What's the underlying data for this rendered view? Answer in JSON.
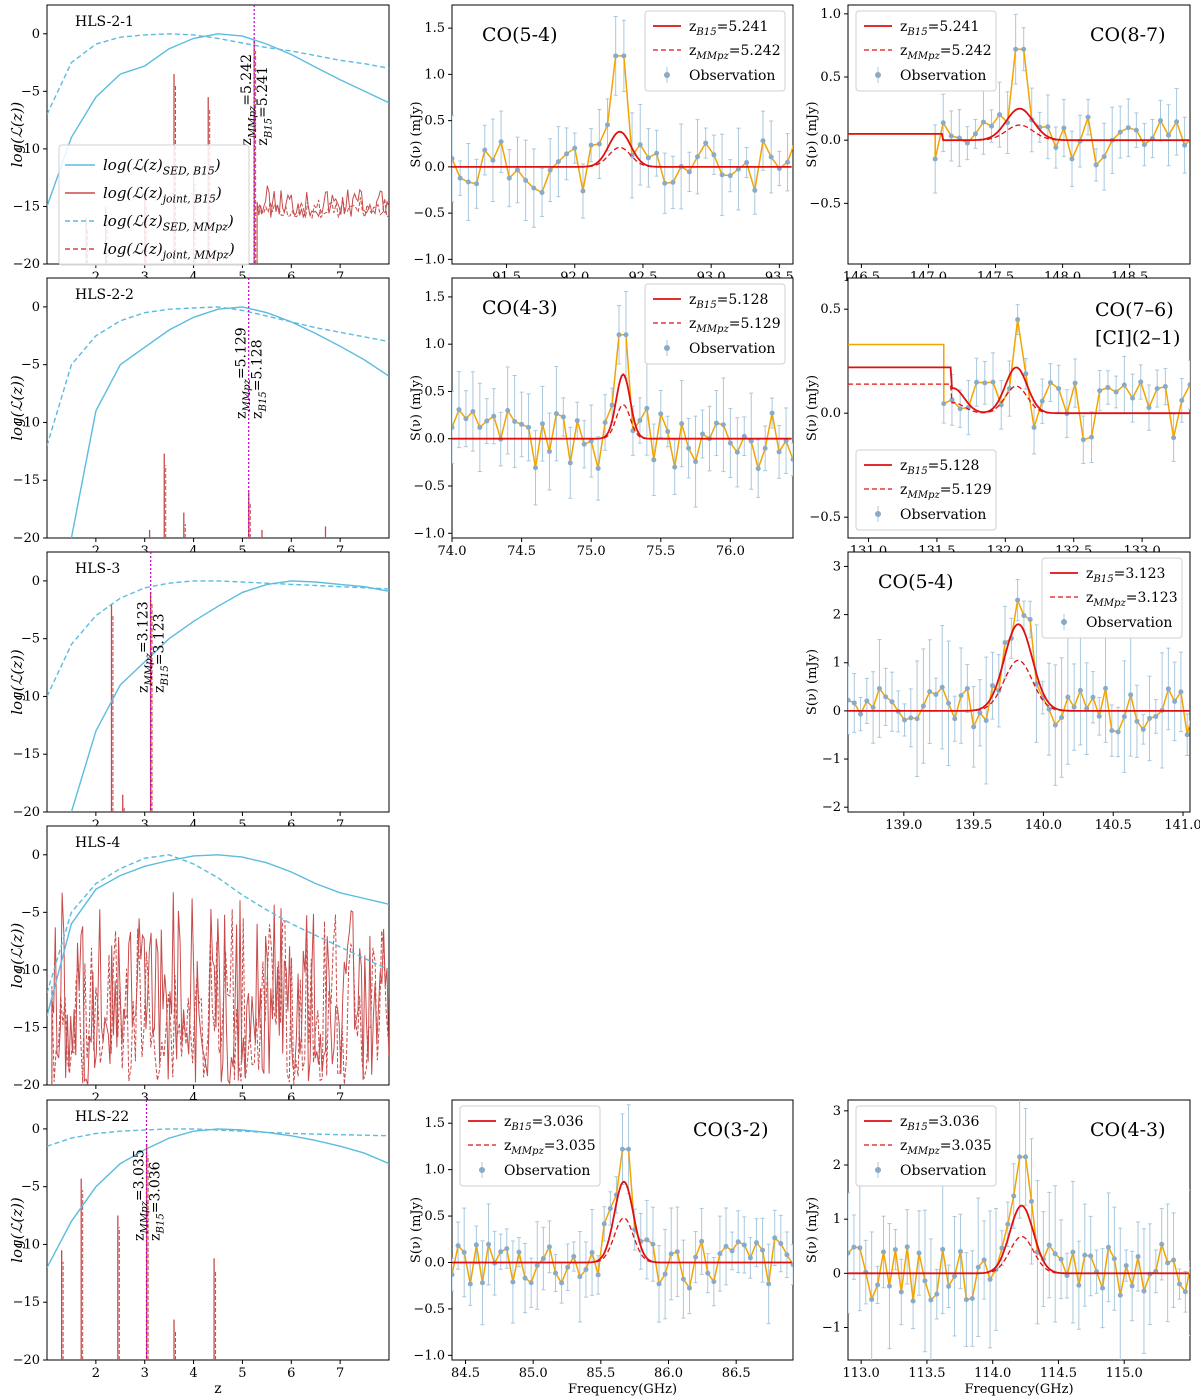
{
  "colors": {
    "sed": "#5bbcdf",
    "joint": "#c84b4b",
    "zline": "#c000c0",
    "fit": "#e01010",
    "obs_line": "#f2a400",
    "obs_point": "#8aabc6",
    "obs_err": "#a9c8de"
  },
  "axis_labels": {
    "likelihood_ylabel": "log(ℒ(z))",
    "spec_ylabel": "S(ν) (mJy)",
    "z_xlabel": "z",
    "freq_xlabel": "Frequency(GHz)"
  },
  "legend_labels": {
    "sed_b15": "log(ℒ(z)SED, B15)",
    "joint_b15": "log(ℒ(z)joint, B15)",
    "sed_mmpz": "log(ℒ(z)SED, MMpz)",
    "joint_mmpz": "log(ℒ(z)joint, MMpz)",
    "observation": "Observation"
  },
  "chart_data": [
    {
      "type": "line",
      "id": "p-hls-2-1",
      "name": "HLS-2-1",
      "xlim": [
        1,
        8
      ],
      "ylim": [
        -20,
        2.5
      ],
      "xticks": [
        2,
        3,
        4,
        5,
        6,
        7
      ],
      "yticks": [
        0,
        -5,
        -10,
        -15,
        -20
      ],
      "z_mmpz": 5.242,
      "z_b15": 5.241,
      "zlabel_mmpz": "zMMpz=5.242",
      "zlabel_b15": "zB15=5.241",
      "sed_b15": [
        [
          1,
          -15
        ],
        [
          1.5,
          -9
        ],
        [
          2,
          -5.5
        ],
        [
          2.5,
          -3.5
        ],
        [
          3,
          -2.8
        ],
        [
          3.5,
          -1.3
        ],
        [
          4,
          -0.4
        ],
        [
          4.5,
          0
        ],
        [
          5,
          -0.2
        ],
        [
          5.5,
          -0.9
        ],
        [
          6,
          -1.8
        ],
        [
          6.5,
          -2.9
        ],
        [
          7,
          -4
        ],
        [
          7.5,
          -5
        ],
        [
          8,
          -6
        ]
      ],
      "sed_mmpz": [
        [
          1,
          -7
        ],
        [
          1.5,
          -2.5
        ],
        [
          2,
          -0.9
        ],
        [
          2.5,
          -0.3
        ],
        [
          3,
          -0.1
        ],
        [
          3.5,
          0
        ],
        [
          4,
          -0.1
        ],
        [
          4.5,
          -0.4
        ],
        [
          5,
          -0.8
        ],
        [
          5.5,
          -1.2
        ],
        [
          6,
          -1.5
        ],
        [
          6.5,
          -1.9
        ],
        [
          7,
          -2.3
        ],
        [
          7.5,
          -2.6
        ],
        [
          8,
          -3
        ]
      ],
      "joint_spikes": [
        [
          3.6,
          -3.5
        ],
        [
          4.3,
          -5.5
        ],
        [
          5.24,
          -0.5
        ],
        [
          4.0,
          -12
        ],
        [
          3.0,
          -14
        ],
        [
          2.2,
          -15
        ],
        [
          1.8,
          -16
        ]
      ],
      "joint_band": [
        5.3,
        8,
        -13,
        -16
      ]
    },
    {
      "type": "line",
      "id": "p-hls-2-2",
      "name": "HLS-2-2",
      "xlim": [
        1,
        8
      ],
      "ylim": [
        -20,
        2.5
      ],
      "xticks": [
        2,
        3,
        4,
        5,
        6,
        7
      ],
      "yticks": [
        0,
        -5,
        -10,
        -15,
        -20
      ],
      "z_mmpz": 5.129,
      "z_b15": 5.128,
      "zlabel_mmpz": "zMMpz=5.129",
      "zlabel_b15": "zB15=5.128",
      "sed_b15": [
        [
          1.5,
          -20
        ],
        [
          2,
          -9
        ],
        [
          2.5,
          -5
        ],
        [
          3,
          -3.5
        ],
        [
          3.5,
          -2
        ],
        [
          4,
          -0.9
        ],
        [
          4.5,
          -0.2
        ],
        [
          5,
          0
        ],
        [
          5.5,
          -0.5
        ],
        [
          6,
          -1.3
        ],
        [
          6.5,
          -2.3
        ],
        [
          7,
          -3.4
        ],
        [
          7.5,
          -4.6
        ],
        [
          8,
          -6
        ]
      ],
      "sed_mmpz": [
        [
          1,
          -12
        ],
        [
          1.5,
          -5
        ],
        [
          2,
          -2.5
        ],
        [
          2.5,
          -1.2
        ],
        [
          3,
          -0.5
        ],
        [
          3.5,
          -0.2
        ],
        [
          4,
          -0.1
        ],
        [
          4.5,
          0
        ],
        [
          5,
          -0.3
        ],
        [
          5.5,
          -0.8
        ],
        [
          6,
          -1.3
        ],
        [
          6.5,
          -1.8
        ],
        [
          7,
          -2.2
        ],
        [
          7.5,
          -2.6
        ],
        [
          8,
          -3
        ]
      ],
      "joint_spikes": [
        [
          3.4,
          -12.7
        ],
        [
          3.8,
          -17.8
        ],
        [
          5.13,
          -16
        ],
        [
          3.1,
          -19.3
        ],
        [
          5.4,
          -19.3
        ],
        [
          6.7,
          -19
        ]
      ],
      "joint_band": null
    },
    {
      "type": "line",
      "id": "p-hls-3",
      "name": "HLS-3",
      "xlim": [
        1,
        8
      ],
      "ylim": [
        -20,
        2.5
      ],
      "xticks": [
        2,
        3,
        4,
        5,
        6,
        7
      ],
      "yticks": [
        0,
        -5,
        -10,
        -15,
        -20
      ],
      "z_mmpz": 3.123,
      "z_b15": 3.123,
      "zlabel_mmpz": "zMMpz=3.123",
      "zlabel_b15": "zB15=3.123",
      "sed_b15": [
        [
          1.5,
          -20
        ],
        [
          2,
          -13
        ],
        [
          2.5,
          -9
        ],
        [
          3,
          -7
        ],
        [
          3.5,
          -5
        ],
        [
          4,
          -3.5
        ],
        [
          4.5,
          -2.2
        ],
        [
          5,
          -1
        ],
        [
          5.5,
          -0.3
        ],
        [
          6,
          0
        ],
        [
          6.5,
          -0.1
        ],
        [
          7,
          -0.3
        ],
        [
          7.5,
          -0.5
        ],
        [
          8,
          -0.9
        ]
      ],
      "sed_mmpz": [
        [
          1,
          -10
        ],
        [
          1.5,
          -5.5
        ],
        [
          2,
          -3
        ],
        [
          2.5,
          -1.5
        ],
        [
          3,
          -0.6
        ],
        [
          3.5,
          -0.2
        ],
        [
          4,
          0
        ],
        [
          4.5,
          0
        ],
        [
          5,
          -0.1
        ],
        [
          5.5,
          -0.2
        ],
        [
          6,
          -0.3
        ],
        [
          6.5,
          -0.4
        ],
        [
          7,
          -0.5
        ],
        [
          7.5,
          -0.6
        ],
        [
          8,
          -0.7
        ]
      ],
      "joint_spikes": [
        [
          2.32,
          -2
        ],
        [
          2.55,
          -18.5
        ],
        [
          3.12,
          -1
        ]
      ],
      "joint_band": null
    },
    {
      "type": "line",
      "id": "p-hls-4",
      "name": "HLS-4",
      "xlim": [
        1,
        8
      ],
      "ylim": [
        -20,
        2.5
      ],
      "xticks": [
        2,
        3,
        4,
        5,
        6,
        7
      ],
      "yticks": [
        0,
        -5,
        -10,
        -15,
        -20
      ],
      "z_mmpz": null,
      "z_b15": null,
      "zlabel_mmpz": "",
      "zlabel_b15": "",
      "sed_b15": [
        [
          1,
          -14
        ],
        [
          1.5,
          -6
        ],
        [
          2,
          -3
        ],
        [
          2.5,
          -1.8
        ],
        [
          3,
          -1
        ],
        [
          3.5,
          -0.5
        ],
        [
          4,
          -0.1
        ],
        [
          4.5,
          0
        ],
        [
          5,
          -0.2
        ],
        [
          5.5,
          -0.7
        ],
        [
          6,
          -1.5
        ],
        [
          6.5,
          -2.5
        ],
        [
          7,
          -3.3
        ],
        [
          7.5,
          -3.8
        ],
        [
          8,
          -4.3
        ]
      ],
      "sed_mmpz": [
        [
          1,
          -12
        ],
        [
          1.5,
          -5
        ],
        [
          2,
          -2.5
        ],
        [
          2.5,
          -1.2
        ],
        [
          3,
          -0.3
        ],
        [
          3.5,
          0
        ],
        [
          4,
          -0.8
        ],
        [
          4.5,
          -2
        ],
        [
          5,
          -3.5
        ],
        [
          5.5,
          -4.8
        ],
        [
          6,
          -6
        ],
        [
          6.5,
          -7
        ],
        [
          7,
          -8
        ],
        [
          7.5,
          -9
        ],
        [
          8,
          -10
        ]
      ],
      "joint_spikes": [],
      "joint_band": [
        1.1,
        8,
        -3,
        -20
      ]
    },
    {
      "type": "line",
      "id": "p-hls-22",
      "name": "HLS-22",
      "xlim": [
        1,
        8
      ],
      "ylim": [
        -20,
        2.5
      ],
      "xticks": [
        2,
        3,
        4,
        5,
        6,
        7
      ],
      "yticks": [
        0,
        -5,
        -10,
        -15,
        -20
      ],
      "z_mmpz": 3.035,
      "z_b15": 3.036,
      "zlabel_mmpz": "zMMpz=3.035",
      "zlabel_b15": "zB15=3.036",
      "sed_b15": [
        [
          1,
          -12
        ],
        [
          1.5,
          -8
        ],
        [
          2,
          -5
        ],
        [
          2.5,
          -3
        ],
        [
          3,
          -1.8
        ],
        [
          3.5,
          -0.8
        ],
        [
          4,
          -0.2
        ],
        [
          4.5,
          0
        ],
        [
          5,
          -0.1
        ],
        [
          5.5,
          -0.3
        ],
        [
          6,
          -0.6
        ],
        [
          6.5,
          -1
        ],
        [
          7,
          -1.5
        ],
        [
          7.5,
          -2.1
        ],
        [
          8,
          -3
        ]
      ],
      "sed_mmpz": [
        [
          1,
          -1.5
        ],
        [
          1.5,
          -0.8
        ],
        [
          2,
          -0.4
        ],
        [
          2.5,
          -0.2
        ],
        [
          3,
          -0.1
        ],
        [
          3.5,
          0
        ],
        [
          4,
          0
        ],
        [
          4.5,
          -0.1
        ],
        [
          5,
          -0.2
        ],
        [
          5.5,
          -0.3
        ],
        [
          6,
          -0.4
        ],
        [
          6.5,
          -0.45
        ],
        [
          7,
          -0.5
        ],
        [
          7.5,
          -0.55
        ],
        [
          8,
          -0.6
        ]
      ],
      "joint_spikes": [
        [
          1.3,
          -10.5
        ],
        [
          1.7,
          -4.3
        ],
        [
          2.45,
          -7.5
        ],
        [
          3.04,
          -1.3
        ],
        [
          3.6,
          -16.5
        ],
        [
          4.42,
          -11.2
        ]
      ],
      "joint_band": null
    },
    {
      "type": "line",
      "id": "s-hls-2-1-a",
      "line": "CO(5-4)",
      "xlim": [
        91.1,
        93.6
      ],
      "ylim": [
        -1.05,
        1.75
      ],
      "xticks": [
        91.5,
        92.0,
        92.5,
        93.0,
        93.5
      ],
      "yticks": [
        1.5,
        1.0,
        0.5,
        0.0,
        -0.5,
        -1.0
      ],
      "peak": 92.33,
      "amp_b15": 0.38,
      "amp_mmpz": 0.21,
      "sigma": 0.08,
      "base": 0,
      "step": 0.06,
      "obs_seed": 11,
      "noise": 0.3,
      "spike": 1.2,
      "legend_pos": "top-right",
      "legend_b15": "zB15=5.241",
      "legend_mmpz": "zMMpz=5.242"
    },
    {
      "type": "line",
      "id": "s-hls-2-1-b",
      "line": "CO(8-7)",
      "xlim": [
        146.4,
        148.95
      ],
      "ylim": [
        -0.98,
        1.07
      ],
      "xticks": [
        146.5,
        147.0,
        147.5,
        148.0,
        148.5
      ],
      "yticks": [
        1.0,
        0.5,
        0.0,
        -0.5
      ],
      "peak": 147.68,
      "amp_b15": 0.25,
      "amp_mmpz": 0.12,
      "sigma": 0.1,
      "base": 0,
      "step": 0.06,
      "obs_start": 147.05,
      "pre_level": 0.05,
      "obs_seed": 23,
      "noise": 0.2,
      "spike": 0.72,
      "legend_pos": "top-left",
      "legend_b15": "zB15=5.241",
      "legend_mmpz": "zMMpz=5.242"
    },
    {
      "type": "line",
      "id": "s-hls-2-2-a",
      "line": "CO(4-3)",
      "xlim": [
        74.0,
        76.45
      ],
      "ylim": [
        -1.05,
        1.7
      ],
      "xticks": [
        74.0,
        74.5,
        75.0,
        75.5,
        76.0
      ],
      "yticks": [
        1.5,
        1.0,
        0.5,
        0.0,
        -0.5,
        -1.0
      ],
      "peak": 75.23,
      "amp_b15": 0.68,
      "amp_mmpz": 0.36,
      "sigma": 0.05,
      "base": 0,
      "step": 0.05,
      "obs_seed": 37,
      "noise": 0.32,
      "spike": 1.1,
      "legend_pos": "top-right",
      "legend_b15": "zB15=5.128",
      "legend_mmpz": "zMMpz=5.129"
    },
    {
      "type": "line",
      "id": "s-hls-2-2-b",
      "line": "CO(7–6)",
      "line2": "[CI](2–1)",
      "xlim": [
        130.85,
        133.35
      ],
      "ylim": [
        -0.6,
        0.65
      ],
      "xticks": [
        131.0,
        131.5,
        132.0,
        132.5,
        133.0
      ],
      "yticks": [
        0.5,
        0.0,
        -0.5
      ],
      "peak": 132.08,
      "amp_b15": 0.22,
      "amp_mmpz": 0.13,
      "sigma": 0.08,
      "base": 0,
      "step": 0.06,
      "obs_start": 131.55,
      "peak2": 131.62,
      "amp2_b15": 0.12,
      "amp2_mmpz": 0.05,
      "pre_level": 0.22,
      "pre_level_mmpz": 0.14,
      "obs_pre": 0.33,
      "obs_seed": 51,
      "noise": 0.15,
      "spike": 0.45,
      "legend_pos": "bottom-left",
      "legend_b15": "zB15=5.128",
      "legend_mmpz": "zMMpz=5.129"
    },
    {
      "type": "line",
      "id": "s-hls-3",
      "line": "CO(5-4)",
      "xlim": [
        138.6,
        141.05
      ],
      "ylim": [
        -2.1,
        3.3
      ],
      "xticks": [
        139.0,
        139.5,
        140.0,
        140.5,
        141.0
      ],
      "yticks": [
        3,
        2,
        1,
        0,
        -1,
        -2
      ],
      "peak": 139.82,
      "amp_b15": 1.8,
      "amp_mmpz": 1.05,
      "sigma": 0.1,
      "base": 0,
      "step": 0.045,
      "obs_seed": 63,
      "noise": 0.5,
      "spike": 2.3,
      "legend_pos": "top-right",
      "legend_b15": "zB15=3.123",
      "legend_mmpz": "zMMpz=3.123"
    },
    {
      "type": "line",
      "id": "s-hls-22-a",
      "line": "CO(3-2)",
      "xlim": [
        84.4,
        86.92
      ],
      "ylim": [
        -1.05,
        1.75
      ],
      "xticks": [
        84.5,
        85.0,
        85.5,
        86.0,
        86.5
      ],
      "yticks": [
        1.5,
        1.0,
        0.5,
        0.0,
        -0.5,
        -1.0
      ],
      "peak": 85.67,
      "amp_b15": 0.87,
      "amp_mmpz": 0.48,
      "sigma": 0.07,
      "base": 0,
      "step": 0.045,
      "obs_seed": 77,
      "noise": 0.3,
      "spike": 1.22,
      "legend_pos": "top-left",
      "legend_b15": "zB15=3.036",
      "legend_mmpz": "zMMpz=3.035"
    },
    {
      "type": "line",
      "id": "s-hls-22-b",
      "line": "CO(4-3)",
      "xlim": [
        112.9,
        115.5
      ],
      "ylim": [
        -1.6,
        3.2
      ],
      "xticks": [
        113.0,
        113.5,
        114.0,
        114.5,
        115.0
      ],
      "yticks": [
        3,
        2,
        1,
        0,
        -1
      ],
      "peak": 114.22,
      "amp_b15": 1.25,
      "amp_mmpz": 0.68,
      "sigma": 0.09,
      "base": 0,
      "step": 0.045,
      "obs_seed": 91,
      "noise": 0.55,
      "spike": 2.15,
      "legend_pos": "top-left",
      "legend_b15": "zB15=3.036",
      "legend_mmpz": "zMMpz=3.035"
    }
  ]
}
